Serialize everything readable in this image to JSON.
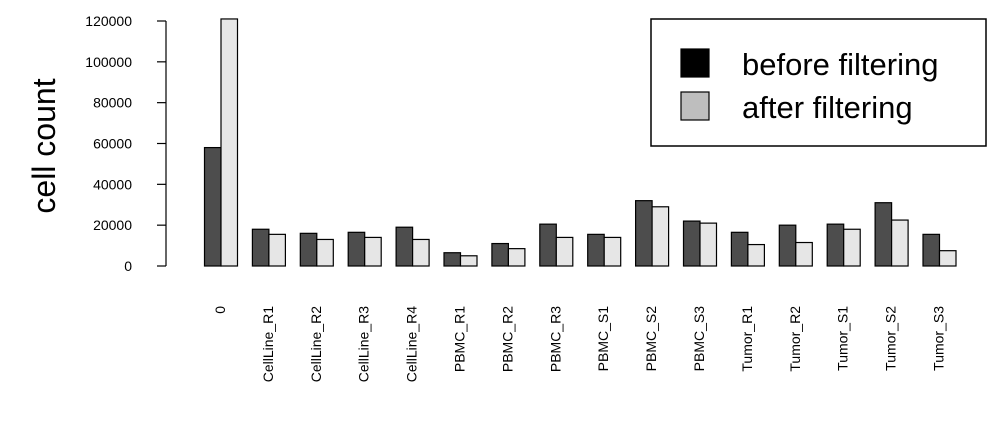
{
  "chart_data": {
    "type": "bar",
    "title": "",
    "xlabel": "",
    "ylabel": "cell count",
    "ylim": [
      0,
      120000
    ],
    "yticks": [
      0,
      20000,
      40000,
      60000,
      80000,
      100000,
      120000
    ],
    "categories": [
      "0",
      "CellLine_R1",
      "CellLine_R2",
      "CellLine_R3",
      "CellLine_R4",
      "PBMC_R1",
      "PBMC_R2",
      "PBMC_R3",
      "PBMC_S1",
      "PBMC_S2",
      "PBMC_S3",
      "Tumor_R1",
      "Tumor_R2",
      "Tumor_S1",
      "Tumor_S2",
      "Tumor_S3"
    ],
    "series": [
      {
        "name": "before filtering",
        "color": "#4d4d4d",
        "values": [
          58000,
          18000,
          16000,
          16500,
          19000,
          6500,
          11000,
          20500,
          15500,
          32000,
          22000,
          16500,
          20000,
          20500,
          31000,
          15500
        ]
      },
      {
        "name": "after filtering",
        "color": "#e6e6e6",
        "values": [
          121000,
          15500,
          13000,
          14000,
          13000,
          5000,
          8500,
          14000,
          14000,
          29000,
          21000,
          10500,
          11500,
          18000,
          22500,
          7500
        ]
      }
    ],
    "legend": {
      "position": "top-right",
      "swatch_colors": [
        "#000000",
        "#bebebe"
      ]
    },
    "grid": false
  }
}
